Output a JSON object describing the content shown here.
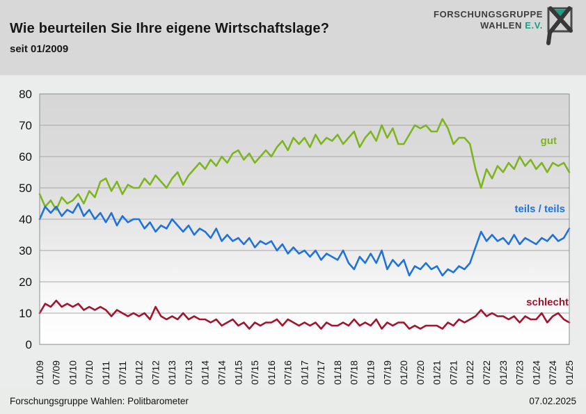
{
  "header": {
    "title": "Wie beurteilen Sie Ihre eigene Wirtschaftslage?",
    "subtitle": "seit 01/2009",
    "logo": {
      "line1": "FORSCHUNGSGRUPPE",
      "line2": "WAHLEN",
      "line2_accent": "E.V.",
      "accent_color": "#1d9e82",
      "text_color": "#3e3e3e"
    }
  },
  "footer": {
    "source": "Forschungsgruppe Wahlen: Politbarometer",
    "date": "07.02.2025"
  },
  "chart_data": {
    "type": "line",
    "title": "Wie beurteilen Sie Ihre eigene Wirtschaftslage?",
    "subtitle": "seit 01/2009",
    "xlabel": "",
    "ylabel": "",
    "ylim": [
      0,
      80
    ],
    "y_ticks": [
      0,
      10,
      20,
      30,
      40,
      50,
      60,
      70,
      80
    ],
    "grid": "horizontal",
    "legend_position": "inline-right",
    "x_tick_labels": [
      "01/09",
      "07/09",
      "01/10",
      "07/10",
      "01/11",
      "07/11",
      "01/12",
      "07/12",
      "01/13",
      "07/13",
      "01/14",
      "07/14",
      "01/15",
      "07/15",
      "01/16",
      "07/16",
      "01/17",
      "07/17",
      "01/18",
      "07/18",
      "01/19",
      "07/19",
      "01/20",
      "07/20",
      "01/21",
      "07/21",
      "01/22",
      "07/22",
      "01/23",
      "07/23",
      "01/24",
      "07/24",
      "01/25"
    ],
    "x_resolution": "bimonthly from 01/2009 to 01/2025",
    "series": [
      {
        "name": "gut",
        "color": "#7cb51e",
        "values": [
          48,
          44,
          46,
          43,
          47,
          45,
          46,
          48,
          45,
          49,
          47,
          52,
          53,
          49,
          52,
          48,
          51,
          50,
          50,
          53,
          51,
          54,
          52,
          50,
          53,
          55,
          51,
          54,
          56,
          58,
          56,
          59,
          57,
          60,
          58,
          61,
          62,
          59,
          61,
          58,
          60,
          62,
          60,
          63,
          65,
          62,
          66,
          64,
          66,
          63,
          67,
          64,
          66,
          65,
          67,
          64,
          66,
          68,
          63,
          66,
          68,
          65,
          70,
          66,
          69,
          64,
          64,
          67,
          70,
          69,
          70,
          68,
          68,
          72,
          69,
          64,
          66,
          66,
          64,
          56,
          50,
          56,
          53,
          57,
          55,
          58,
          56,
          60,
          57,
          59,
          56,
          58,
          55,
          58,
          57,
          58,
          55
        ]
      },
      {
        "name": "teils / teils",
        "color": "#1e72dc",
        "values": [
          40,
          44,
          42,
          44,
          41,
          43,
          42,
          45,
          41,
          43,
          40,
          42,
          39,
          42,
          38,
          41,
          39,
          40,
          40,
          37,
          39,
          36,
          38,
          37,
          40,
          38,
          36,
          38,
          35,
          37,
          36,
          34,
          37,
          33,
          35,
          33,
          34,
          32,
          34,
          31,
          33,
          32,
          33,
          30,
          32,
          29,
          31,
          29,
          30,
          28,
          30,
          27,
          29,
          28,
          27,
          30,
          26,
          24,
          28,
          26,
          29,
          26,
          30,
          24,
          27,
          25,
          27,
          22,
          25,
          24,
          26,
          24,
          25,
          22,
          24,
          23,
          25,
          24,
          26,
          31,
          36,
          33,
          35,
          33,
          34,
          32,
          35,
          32,
          34,
          33,
          32,
          34,
          33,
          35,
          33,
          34,
          37
        ]
      },
      {
        "name": "schlecht",
        "color": "#a4132e",
        "values": [
          10,
          13,
          12,
          14,
          12,
          13,
          12,
          13,
          11,
          12,
          11,
          12,
          11,
          9,
          11,
          10,
          9,
          10,
          9,
          10,
          8,
          12,
          9,
          8,
          9,
          8,
          10,
          8,
          9,
          8,
          8,
          7,
          8,
          6,
          7,
          8,
          6,
          7,
          5,
          7,
          6,
          7,
          7,
          8,
          6,
          8,
          7,
          6,
          7,
          6,
          7,
          5,
          7,
          6,
          6,
          7,
          6,
          8,
          6,
          7,
          6,
          8,
          5,
          7,
          6,
          7,
          7,
          5,
          6,
          5,
          6,
          6,
          6,
          5,
          7,
          6,
          8,
          7,
          8,
          9,
          11,
          9,
          10,
          9,
          9,
          8,
          9,
          7,
          9,
          8,
          8,
          10,
          7,
          9,
          10,
          8,
          7
        ]
      }
    ],
    "plot_style": {
      "bg_gradient_top": "#d6d6d6",
      "bg_gradient_bottom": "#ffffff",
      "gridline_color": "#a6a6a6",
      "border_color": "#8f8f8f",
      "line_width": 2.6
    }
  },
  "legend": {
    "gut": "gut",
    "teils": "teils / teils",
    "schlecht": "schlecht"
  }
}
